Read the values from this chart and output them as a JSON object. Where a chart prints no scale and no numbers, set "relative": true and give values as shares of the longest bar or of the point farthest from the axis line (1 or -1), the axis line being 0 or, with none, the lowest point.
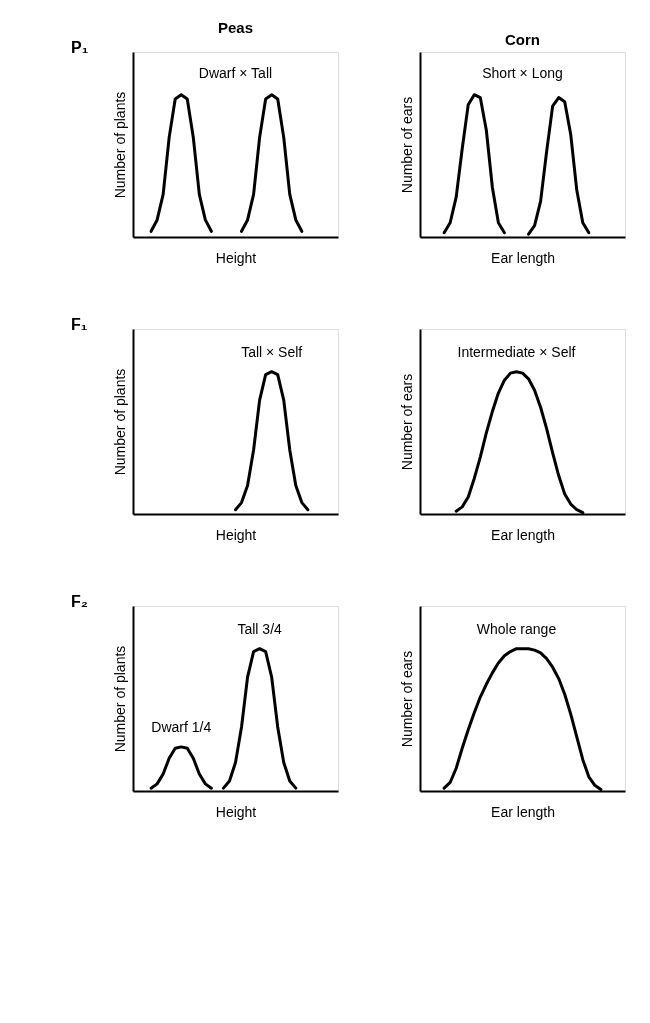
{
  "chart_data": [
    {
      "type": "line",
      "relative": true,
      "title": "Peas",
      "xlabel": "Height",
      "ylabel": "Number of plants",
      "annotations": [
        "P₁",
        "Dwarf × Tall"
      ],
      "tick_labels": false,
      "grid": false,
      "categories": [
        null,
        null,
        null,
        null,
        null,
        null,
        null,
        null,
        null,
        null,
        null,
        null,
        null,
        null,
        null,
        null,
        null,
        null,
        null,
        null,
        null,
        null,
        null,
        null,
        null,
        null,
        null,
        null,
        null,
        null,
        null,
        null,
        null
      ],
      "series": [
        {
          "color": "#000000",
          "values": [
            null,
            null,
            0.04,
            0.12,
            0.3,
            0.7,
            0.97,
            1,
            0.97,
            0.7,
            0.3,
            0.12,
            0.04,
            null,
            null,
            null,
            null,
            null,
            null,
            null,
            null,
            null,
            null,
            null,
            null,
            null,
            null,
            null,
            null,
            null,
            null,
            null,
            null
          ]
        },
        {
          "color": "#000000",
          "values": [
            null,
            null,
            null,
            null,
            null,
            null,
            null,
            null,
            null,
            null,
            null,
            null,
            null,
            null,
            null,
            null,
            null,
            0.04,
            0.12,
            0.3,
            0.7,
            0.97,
            1,
            0.97,
            0.7,
            0.3,
            0.12,
            0.04,
            null,
            null,
            null,
            null,
            null
          ]
        }
      ]
    },
    {
      "type": "line",
      "relative": true,
      "title": "Corn",
      "xlabel": "Ear length",
      "ylabel": "Number of ears",
      "annotations": [
        "Short × Long"
      ],
      "tick_labels": false,
      "grid": false,
      "categories": [
        null,
        null,
        null,
        null,
        null,
        null,
        null,
        null,
        null,
        null,
        null,
        null,
        null,
        null,
        null,
        null,
        null,
        null,
        null,
        null,
        null,
        null,
        null,
        null,
        null,
        null,
        null,
        null,
        null,
        null,
        null,
        null,
        null
      ],
      "series": [
        {
          "color": "#000000",
          "values": [
            null,
            null,
            null,
            0.03,
            0.1,
            0.28,
            0.62,
            0.93,
            1,
            0.98,
            0.75,
            0.35,
            0.1,
            0.03,
            null,
            null,
            null,
            null,
            null,
            null,
            null,
            null,
            null,
            null,
            null,
            null,
            null,
            null,
            null,
            null,
            null,
            null,
            null
          ]
        },
        {
          "color": "#000000",
          "values": [
            null,
            null,
            null,
            null,
            null,
            null,
            null,
            null,
            null,
            null,
            null,
            null,
            null,
            null,
            null,
            null,
            null,
            0.02,
            0.08,
            0.25,
            0.6,
            0.92,
            0.98,
            0.95,
            0.72,
            0.33,
            0.1,
            0.03,
            null,
            null,
            null,
            null,
            null
          ]
        }
      ]
    },
    {
      "type": "line",
      "relative": true,
      "xlabel": "Height",
      "ylabel": "Number of plants",
      "annotations": [
        "F₁",
        "Tall × Self"
      ],
      "tick_labels": false,
      "grid": false,
      "categories": [
        null,
        null,
        null,
        null,
        null,
        null,
        null,
        null,
        null,
        null,
        null,
        null,
        null,
        null,
        null,
        null,
        null,
        null,
        null,
        null,
        null,
        null,
        null,
        null,
        null,
        null,
        null,
        null,
        null,
        null,
        null,
        null,
        null
      ],
      "series": [
        {
          "color": "#000000",
          "values": [
            null,
            null,
            null,
            null,
            null,
            null,
            null,
            null,
            null,
            null,
            null,
            null,
            null,
            null,
            null,
            null,
            0.03,
            0.08,
            0.2,
            0.45,
            0.8,
            0.98,
            1,
            0.98,
            0.8,
            0.45,
            0.2,
            0.08,
            0.03,
            null,
            null,
            null,
            null
          ]
        }
      ]
    },
    {
      "type": "line",
      "relative": true,
      "xlabel": "Ear length",
      "ylabel": "Number of ears",
      "annotations": [
        "Intermediate × Self"
      ],
      "tick_labels": false,
      "grid": false,
      "categories": [
        null,
        null,
        null,
        null,
        null,
        null,
        null,
        null,
        null,
        null,
        null,
        null,
        null,
        null,
        null,
        null,
        null,
        null,
        null,
        null,
        null,
        null,
        null,
        null,
        null,
        null,
        null,
        null,
        null,
        null,
        null,
        null,
        null
      ],
      "series": [
        {
          "color": "#000000",
          "values": [
            null,
            null,
            null,
            null,
            null,
            0.02,
            0.05,
            0.12,
            0.25,
            0.4,
            0.57,
            0.72,
            0.85,
            0.94,
            0.99,
            1,
            0.99,
            0.95,
            0.87,
            0.75,
            0.6,
            0.43,
            0.27,
            0.14,
            0.07,
            0.03,
            0.01,
            null,
            null,
            null,
            null,
            null,
            null
          ]
        }
      ]
    },
    {
      "type": "line",
      "relative": true,
      "xlabel": "Height",
      "ylabel": "Number of plants",
      "annotations": [
        "F₂",
        "Dwarf 1/4",
        "Tall 3/4"
      ],
      "tick_labels": false,
      "grid": false,
      "categories": [
        null,
        null,
        null,
        null,
        null,
        null,
        null,
        null,
        null,
        null,
        null,
        null,
        null,
        null,
        null,
        null,
        null,
        null,
        null,
        null,
        null,
        null,
        null,
        null,
        null,
        null,
        null,
        null,
        null,
        null,
        null,
        null,
        null
      ],
      "series": [
        {
          "color": "#000000",
          "values": [
            null,
            null,
            0.02,
            0.05,
            0.12,
            0.23,
            0.3,
            0.31,
            0.3,
            0.23,
            0.12,
            0.05,
            0.02,
            null,
            null,
            null,
            null,
            null,
            null,
            null,
            null,
            null,
            null,
            null,
            null,
            null,
            null,
            null,
            null,
            null,
            null,
            null,
            null
          ]
        },
        {
          "color": "#000000",
          "values": [
            null,
            null,
            null,
            null,
            null,
            null,
            null,
            null,
            null,
            null,
            null,
            null,
            null,
            null,
            0.02,
            0.07,
            0.2,
            0.45,
            0.8,
            0.98,
            1,
            0.98,
            0.8,
            0.45,
            0.2,
            0.07,
            0.02,
            null,
            null,
            null,
            null,
            null,
            null
          ]
        }
      ]
    },
    {
      "type": "line",
      "relative": true,
      "xlabel": "Ear length",
      "ylabel": "Number of ears",
      "annotations": [
        "Whole range"
      ],
      "tick_labels": false,
      "grid": false,
      "categories": [
        null,
        null,
        null,
        null,
        null,
        null,
        null,
        null,
        null,
        null,
        null,
        null,
        null,
        null,
        null,
        null,
        null,
        null,
        null,
        null,
        null,
        null,
        null,
        null,
        null,
        null,
        null,
        null,
        null,
        null,
        null,
        null,
        null
      ],
      "series": [
        {
          "color": "#000000",
          "values": [
            null,
            null,
            null,
            0.02,
            0.06,
            0.16,
            0.3,
            0.43,
            0.55,
            0.66,
            0.75,
            0.83,
            0.9,
            0.95,
            0.98,
            1,
            1,
            1,
            0.99,
            0.97,
            0.93,
            0.87,
            0.79,
            0.68,
            0.54,
            0.38,
            0.22,
            0.1,
            0.04,
            0.01,
            null,
            null,
            null
          ]
        }
      ]
    }
  ]
}
